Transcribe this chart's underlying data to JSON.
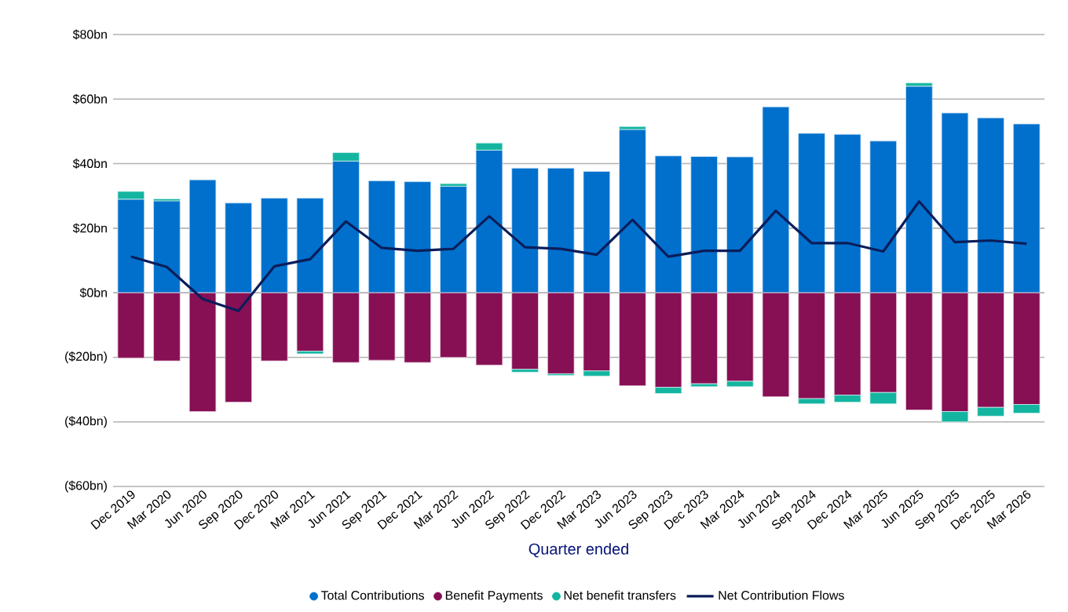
{
  "chart_data": {
    "type": "bar",
    "stacked": true,
    "xlabel": "Quarter ended",
    "categories": [
      "Dec 2019",
      "Mar 2020",
      "Jun 2020",
      "Sep 2020",
      "Dec 2020",
      "Mar 2021",
      "Jun 2021",
      "Sep 2021",
      "Dec 2021",
      "Mar 2022",
      "Jun 2022",
      "Sep 2022",
      "Dec 2022",
      "Mar 2023",
      "Jun 2023",
      "Sep 2023",
      "Dec 2023",
      "Mar 2024",
      "Jun 2024",
      "Sep 2024",
      "Dec 2024",
      "Mar 2025",
      "Jun 2025",
      "Sep 2025",
      "Dec 2025",
      "Mar 2026"
    ],
    "series": [
      {
        "name": "Total Contributions",
        "color": "#0070cc",
        "values": [
          29.0,
          28.5,
          35.0,
          27.8,
          29.3,
          29.3,
          40.8,
          34.7,
          34.4,
          33.0,
          44.2,
          38.6,
          38.6,
          37.6,
          50.6,
          42.4,
          42.2,
          42.1,
          57.6,
          49.4,
          49.1,
          47.0,
          64.0,
          55.7,
          54.2,
          52.3
        ]
      },
      {
        "name": "Benefit Payments",
        "color": "#870f54",
        "values": [
          -20.2,
          -21.1,
          -36.8,
          -33.9,
          -21.1,
          -18.1,
          -21.6,
          -20.9,
          -21.6,
          -20.0,
          -22.4,
          -23.7,
          -25.1,
          -24.2,
          -28.8,
          -29.3,
          -28.2,
          -27.4,
          -32.2,
          -32.8,
          -31.7,
          -30.9,
          -36.3,
          -36.8,
          -35.5,
          -34.6
        ]
      },
      {
        "name": "Net benefit transfers",
        "color": "#13b5a0",
        "values": [
          2.4,
          0.6,
          null,
          null,
          null,
          -0.8,
          2.6,
          null,
          null,
          0.8,
          2.2,
          -0.9,
          -0.5,
          -1.6,
          0.9,
          -1.9,
          -0.9,
          -1.7,
          null,
          -1.6,
          -2.2,
          -3.5,
          1.0,
          -3.2,
          -2.7,
          -2.7
        ]
      },
      {
        "name": "Net Contribution Flows",
        "type": "line",
        "color": "#0b1d5a",
        "values": [
          11.2,
          8.0,
          -1.9,
          -5.6,
          8.2,
          10.4,
          22.1,
          13.9,
          13.0,
          13.6,
          23.7,
          14.1,
          13.6,
          11.8,
          22.6,
          11.2,
          13.0,
          13.0,
          25.4,
          15.4,
          15.4,
          12.8,
          28.3,
          15.7,
          16.2,
          15.2
        ]
      }
    ],
    "ylim": [
      -60,
      80
    ],
    "yticks": [
      {
        "value": -60,
        "label": "($60bn)"
      },
      {
        "value": -40,
        "label": "($40bn)"
      },
      {
        "value": -20,
        "label": "($20bn)"
      },
      {
        "value": 0,
        "label": "$0bn"
      },
      {
        "value": 20,
        "label": "$20bn"
      },
      {
        "value": 40,
        "label": "$40bn"
      },
      {
        "value": 60,
        "label": "$60bn"
      },
      {
        "value": 80,
        "label": "$80bn"
      }
    ],
    "grid": "y",
    "legend": "bottom",
    "marker": "none",
    "line_style": "solid"
  }
}
